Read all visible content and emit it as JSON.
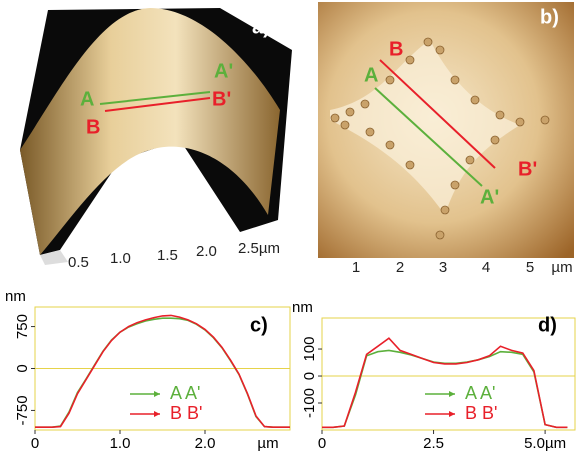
{
  "panel_a": {
    "label": "a)",
    "points": [
      "A",
      "A'",
      "B",
      "B'"
    ],
    "axis_ticks": [
      "0.5",
      "1.0",
      "1.5",
      "2.0",
      "2.5µm"
    ]
  },
  "panel_b": {
    "label": "b)",
    "points": [
      "A",
      "A'",
      "B",
      "B'"
    ],
    "axis_ticks": [
      "1",
      "2",
      "3",
      "4",
      "5"
    ],
    "axis_unit": "µm"
  },
  "chart_data": [
    {
      "type": "line",
      "label": "c)",
      "ylabel": "nm",
      "xlabel": "µm",
      "x": [
        0,
        0.1,
        0.2,
        0.3,
        0.4,
        0.5,
        0.6,
        0.7,
        0.8,
        0.9,
        1.0,
        1.1,
        1.2,
        1.3,
        1.4,
        1.5,
        1.6,
        1.7,
        1.8,
        1.9,
        2.0,
        2.1,
        2.2,
        2.3,
        2.4,
        2.5,
        2.6,
        2.7,
        2.8,
        2.9,
        3.0
      ],
      "series": [
        {
          "name": "A A'",
          "color": "#5cb03c",
          "values": [
            -1050,
            -1050,
            -1050,
            -1030,
            -780,
            -430,
            -190,
            60,
            310,
            510,
            650,
            740,
            800,
            850,
            880,
            900,
            900,
            890,
            860,
            790,
            690,
            550,
            370,
            140,
            -110,
            -460,
            -860,
            -1040,
            -1050,
            -1050,
            -1050
          ]
        },
        {
          "name": "B B'",
          "color": "#e8202a",
          "values": [
            -1050,
            -1050,
            -1050,
            -1040,
            -800,
            -450,
            -200,
            50,
            300,
            500,
            650,
            750,
            820,
            870,
            910,
            940,
            950,
            920,
            870,
            800,
            700,
            560,
            380,
            150,
            -100,
            -450,
            -850,
            -1040,
            -1050,
            -1050,
            -1050
          ]
        }
      ],
      "xlim": [
        0,
        3.0
      ],
      "ylim": [
        -1100,
        1100
      ],
      "xticks": [
        0,
        {
          "value": 1,
          "label": "1.0"
        },
        {
          "value": 2,
          "label": "2.0"
        }
      ],
      "yticks": [
        750,
        0,
        -750
      ],
      "frame_color": "#e6d34a"
    },
    {
      "type": "line",
      "label": "d)",
      "ylabel": "nm",
      "x": [
        0,
        0.25,
        0.5,
        0.75,
        1,
        1.25,
        1.5,
        1.75,
        2,
        2.25,
        2.5,
        2.75,
        3,
        3.25,
        3.5,
        3.75,
        4,
        4.25,
        4.5,
        4.75,
        5,
        5.25,
        5.5
      ],
      "series": [
        {
          "name": "A A'",
          "color": "#5cb03c",
          "values": [
            -190,
            -190,
            -185,
            -70,
            75,
            90,
            95,
            88,
            78,
            65,
            52,
            47,
            47,
            52,
            60,
            72,
            90,
            88,
            80,
            15,
            -180,
            -190,
            -190
          ]
        },
        {
          "name": "B B'",
          "color": "#e8202a",
          "values": [
            -190,
            -190,
            -185,
            -60,
            80,
            110,
            140,
            95,
            80,
            65,
            50,
            45,
            45,
            50,
            60,
            75,
            110,
            95,
            85,
            20,
            -180,
            -190,
            -190
          ]
        }
      ],
      "xlim": [
        0,
        5.67
      ],
      "ylim": [
        -200,
        215
      ],
      "xticks": [
        0,
        2.5,
        {
          "value": 5,
          "label": "5.0µm"
        }
      ],
      "yticks": [
        100,
        0,
        -100
      ],
      "frame_color": "#e6d34a"
    }
  ]
}
